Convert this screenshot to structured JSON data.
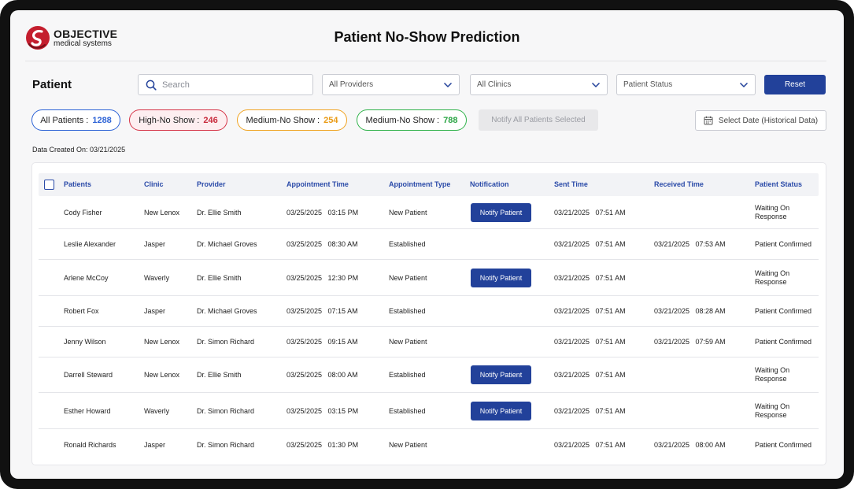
{
  "brand": {
    "name": "OBJECTIVE",
    "tagline": "medical systems"
  },
  "app_title": "Patient No-Show Prediction",
  "section_title": "Patient",
  "search": {
    "placeholder": "Search",
    "value": ""
  },
  "filters": {
    "providers": "All Providers",
    "clinics": "All Clinics",
    "status": "Patient Status",
    "reset_label": "Reset"
  },
  "pills": {
    "all": {
      "label": "All Patients :",
      "count": "1288"
    },
    "high": {
      "label": "High-No Show :",
      "count": "246"
    },
    "medium": {
      "label": "Medium-No Show :",
      "count": "254"
    },
    "medium2": {
      "label": "Medium-No Show :",
      "count": "788"
    }
  },
  "notify_all_label": "Notify All Patients Selected",
  "date_picker_label": "Select Date (Historical Data)",
  "data_created": "Data Created On: 03/21/2025",
  "table": {
    "headers": {
      "patients": "Patients",
      "clinic": "Clinic",
      "provider": "Provider",
      "appt_time": "Appointment Time",
      "appt_type": "Appointment Type",
      "notification": "Notification",
      "sent": "Sent Time",
      "received": "Received Time",
      "status": "Patient Status"
    },
    "notify_label": "Notify Patient",
    "rows": [
      {
        "patient": "Cody Fisher",
        "clinic": "New Lenox",
        "provider": "Dr. Ellie Smith",
        "appt": "03/25/2025   03:15 PM",
        "type": "New Patient",
        "notify": true,
        "sent": "03/21/2025   07:51 AM",
        "received": "",
        "status": "Waiting On Response"
      },
      {
        "patient": "Leslie Alexander",
        "clinic": "Jasper",
        "provider": "Dr. Michael Groves",
        "appt": "03/25/2025   08:30 AM",
        "type": "Established",
        "notify": false,
        "sent": "03/21/2025   07:51 AM",
        "received": "03/21/2025   07:53 AM",
        "status": "Patient Confirmed"
      },
      {
        "patient": "Arlene McCoy",
        "clinic": "Waverly",
        "provider": "Dr. Ellie Smith",
        "appt": "03/25/2025   12:30 PM",
        "type": "New Patient",
        "notify": true,
        "sent": "03/21/2025   07:51 AM",
        "received": "",
        "status": "Waiting On Response"
      },
      {
        "patient": "Robert Fox",
        "clinic": "Jasper",
        "provider": "Dr. Michael Groves",
        "appt": "03/25/2025   07:15 AM",
        "type": "Established",
        "notify": false,
        "sent": "03/21/2025   07:51 AM",
        "received": "03/21/2025   08:28 AM",
        "status": "Patient Confirmed"
      },
      {
        "patient": "Jenny Wilson",
        "clinic": "New Lenox",
        "provider": "Dr. Simon Richard",
        "appt": "03/25/2025   09:15 AM",
        "type": "New Patient",
        "notify": false,
        "sent": "03/21/2025   07:51 AM",
        "received": "03/21/2025   07:59 AM",
        "status": "Patient Confirmed"
      },
      {
        "patient": "Darrell Steward",
        "clinic": "New Lenox",
        "provider": "Dr. Ellie Smith",
        "appt": "03/25/2025   08:00 AM",
        "type": "Established",
        "notify": true,
        "sent": "03/21/2025   07:51 AM",
        "received": "",
        "status": "Waiting On Response"
      },
      {
        "patient": "Esther Howard",
        "clinic": "Waverly",
        "provider": "Dr. Simon Richard",
        "appt": "03/25/2025   03:15 PM",
        "type": "Established",
        "notify": true,
        "sent": "03/21/2025   07:51 AM",
        "received": "",
        "status": "Waiting On Response"
      },
      {
        "patient": "Ronald Richards",
        "clinic": "Jasper",
        "provider": "Dr. Simon Richard",
        "appt": "03/25/2025   01:30 PM",
        "type": "New Patient",
        "notify": false,
        "sent": "03/21/2025   07:51 AM",
        "received": "03/21/2025   08:00 AM",
        "status": "Patient Confirmed"
      }
    ]
  },
  "colors": {
    "primary": "#22419a",
    "all": "#2d63d6",
    "high": "#d63447",
    "medium": "#f0a321",
    "low": "#2fb24a"
  }
}
